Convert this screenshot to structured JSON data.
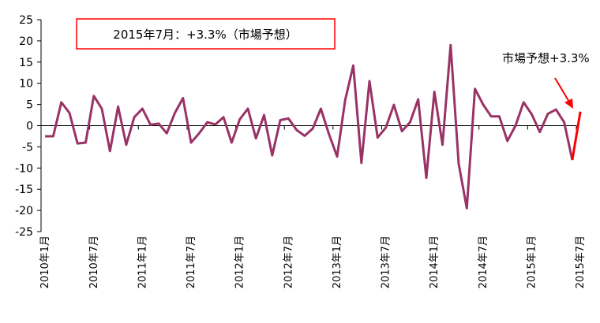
{
  "chart_data": {
    "type": "line",
    "ylim": [
      -25,
      25
    ],
    "yticks": [
      "25",
      "20",
      "15",
      "10",
      "5",
      "0",
      "-5",
      "-10",
      "-15",
      "-20",
      "-25"
    ],
    "ytick_values": [
      25,
      20,
      15,
      10,
      5,
      0,
      -5,
      -10,
      -15,
      -20,
      -25
    ],
    "x_tick_labels": [
      "2010年1月",
      "2010年7月",
      "2011年1月",
      "2011年7月",
      "2012年1月",
      "2012年7月",
      "2013年1月",
      "2013年7月",
      "2014年1月",
      "2014年7月",
      "2015年1月",
      "2015年7月"
    ],
    "x_tick_index": [
      0,
      6,
      12,
      18,
      24,
      30,
      36,
      42,
      48,
      54,
      60,
      66
    ],
    "grid": false,
    "series": [
      {
        "color": "#993366",
        "values": [
          -2.5,
          -2.5,
          5.5,
          3.0,
          -4.2,
          -4.0,
          7.0,
          4.0,
          -6.0,
          4.5,
          -4.5,
          2.0,
          4.0,
          0.2,
          0.5,
          -1.8,
          3.0,
          6.5,
          -4.0,
          -1.8,
          0.8,
          0.3,
          2.0,
          -4.0,
          1.5,
          4.0,
          -3.0,
          2.5,
          -7.0,
          1.3,
          1.7,
          -1.0,
          -2.4,
          -0.7,
          4.0,
          -2.0,
          -7.3,
          6.0,
          14.2,
          -8.8,
          10.5,
          -2.8,
          -0.5,
          4.9,
          -1.3,
          0.8,
          6.2,
          -12.3,
          8.0,
          -4.5,
          19.0,
          -9.0,
          -19.5,
          8.7,
          5.0,
          2.2,
          2.2,
          -3.6,
          0.0,
          5.5,
          2.7,
          -1.5,
          2.8,
          3.8,
          0.8,
          -8.1
        ]
      },
      {
        "color": "#ff0000",
        "values": [
          -8.1,
          3.3
        ],
        "start_index": 65
      }
    ],
    "annotations": {
      "box_label": "2015年7月：+3.3%（市場予想）",
      "arrow_label": "市場予想+3.3%",
      "accent": "#ff0000"
    }
  }
}
